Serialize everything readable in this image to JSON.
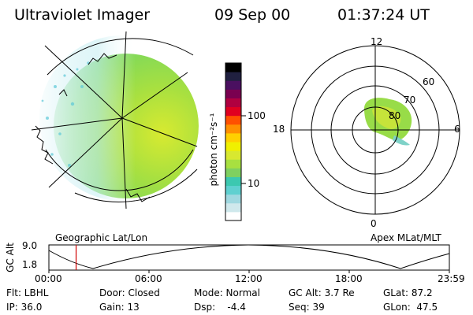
{
  "header": {
    "instrument": "Ultraviolet Imager",
    "date": "09 Sep 00",
    "time": "01:37:24 UT"
  },
  "colorbar": {
    "unit_label": "photon cm⁻²s⁻¹",
    "tick_labels": [
      "100",
      "10"
    ],
    "colors": [
      "#ffffff",
      "#cfe8ec",
      "#9fd8e0",
      "#5fd0d0",
      "#3cc8b0",
      "#7fd060",
      "#a8e040",
      "#d8e830",
      "#f0f000",
      "#ffd000",
      "#ff9000",
      "#ff5000",
      "#e00020",
      "#b00040",
      "#7a0050",
      "#4a1060",
      "#202040",
      "#000000"
    ]
  },
  "left_map": {
    "caption": "Geographic Lat/Lon"
  },
  "polar_plot": {
    "caption": "Apex MLat/MLT",
    "mlt_labels": {
      "top": "12",
      "left": "18",
      "right": "6",
      "bottom": "0"
    },
    "lat_labels": [
      "60",
      "70",
      "80"
    ]
  },
  "altitude_plot": {
    "y_axis_label": "GC Alt",
    "y_ticks": [
      "9.0",
      "1.8"
    ],
    "x_ticks": [
      "00:00",
      "06:00",
      "12:00",
      "18:00",
      "23:59"
    ],
    "current_time_fraction": 0.068
  },
  "status": {
    "row1": {
      "filter": "Flt: LBHL",
      "door": "Door: Closed",
      "mode": "Mode: Normal",
      "gc_alt": "GC Alt: 3.7 Re",
      "glat": "GLat: 87.2"
    },
    "row2": {
      "ip": "IP: 36.0",
      "gain": "Gain: 13",
      "dsp": "Dsp:    -4.4",
      "seq": "Seq: 39",
      "glon": "GLon:  47.5"
    }
  }
}
